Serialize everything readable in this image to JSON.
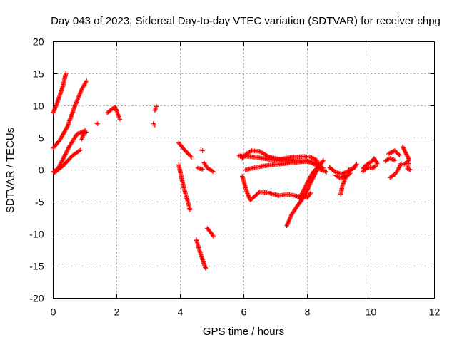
{
  "chart_data": {
    "type": "scatter",
    "title": "Day 043 of 2023, Sidereal Day-to-day VTEC variation (SDTVAR) for receiver chpg",
    "xlabel": "GPS time / hours",
    "ylabel": "SDTVAR / TECUs",
    "xlim": [
      0,
      12
    ],
    "ylim": [
      -20,
      20
    ],
    "x_ticks": [
      "0",
      "2",
      "4",
      "6",
      "8",
      "10",
      "12"
    ],
    "y_ticks": [
      "20",
      "15",
      "10",
      "5",
      "0",
      "-5",
      "-10",
      "-15",
      "-20"
    ],
    "grid": true,
    "marker": "plus",
    "color": "#ff0000",
    "arcs": [
      {
        "points": [
          [
            0.0,
            8.9
          ],
          [
            0.15,
            10.8
          ],
          [
            0.3,
            13.0
          ],
          [
            0.4,
            15.1
          ]
        ]
      },
      {
        "points": [
          [
            0.0,
            3.4
          ],
          [
            0.2,
            4.6
          ],
          [
            0.45,
            6.8
          ],
          [
            0.7,
            10.2
          ],
          [
            0.9,
            12.6
          ],
          [
            1.05,
            13.9
          ]
        ]
      },
      {
        "points": [
          [
            0.0,
            -0.3
          ],
          [
            0.15,
            0.2
          ],
          [
            0.3,
            1.6
          ],
          [
            0.5,
            3.6
          ],
          [
            0.75,
            5.6
          ],
          [
            0.95,
            6.0
          ],
          [
            1.05,
            5.9
          ]
        ]
      },
      {
        "points": [
          [
            0.05,
            -0.4
          ],
          [
            0.3,
            0.6
          ],
          [
            0.6,
            2.2
          ],
          [
            0.85,
            3.1
          ]
        ]
      },
      {
        "points": [
          [
            0.9,
            4.8
          ],
          [
            1.0,
            6.2
          ]
        ]
      },
      {
        "points": [
          [
            1.35,
            7.3
          ],
          [
            1.4,
            7.2
          ]
        ]
      },
      {
        "points": [
          [
            1.7,
            8.9
          ],
          [
            1.85,
            9.5
          ],
          [
            1.95,
            9.8
          ],
          [
            2.05,
            8.5
          ],
          [
            2.1,
            7.9
          ]
        ]
      },
      {
        "points": [
          [
            3.15,
            7.2
          ],
          [
            3.2,
            7.0
          ]
        ]
      },
      {
        "points": [
          [
            3.2,
            9.3
          ],
          [
            3.25,
            9.9
          ]
        ]
      },
      {
        "points": [
          [
            3.95,
            4.2
          ],
          [
            4.1,
            3.3
          ],
          [
            4.25,
            2.5
          ],
          [
            4.35,
            2.0
          ]
        ]
      },
      {
        "points": [
          [
            3.95,
            0.8
          ],
          [
            4.05,
            -1.5
          ],
          [
            4.15,
            -3.5
          ],
          [
            4.25,
            -5.2
          ],
          [
            4.3,
            -6.2
          ]
        ]
      },
      {
        "points": [
          [
            4.55,
            0.3
          ],
          [
            4.7,
            0.1
          ]
        ]
      },
      {
        "points": [
          [
            4.75,
            1.1
          ],
          [
            4.85,
            0.3
          ],
          [
            4.95,
            0.0
          ],
          [
            5.05,
            -0.3
          ]
        ]
      },
      {
        "points": [
          [
            4.65,
            3.1
          ],
          [
            4.7,
            3.0
          ]
        ]
      },
      {
        "points": [
          [
            4.5,
            -10.8
          ],
          [
            4.6,
            -12.5
          ],
          [
            4.7,
            -14.0
          ],
          [
            4.8,
            -15.4
          ]
        ]
      },
      {
        "points": [
          [
            4.85,
            -9.1
          ],
          [
            4.95,
            -9.7
          ],
          [
            5.05,
            -10.4
          ]
        ]
      },
      {
        "points": [
          [
            5.95,
            -1.0
          ],
          [
            6.1,
            -3.5
          ],
          [
            6.2,
            -4.7
          ],
          [
            6.3,
            -4.3
          ],
          [
            6.5,
            -3.4
          ],
          [
            6.8,
            -3.6
          ],
          [
            7.1,
            -4.0
          ],
          [
            7.4,
            -3.8
          ],
          [
            7.7,
            -4.1
          ],
          [
            8.0,
            -4.3
          ],
          [
            8.1,
            -3.6
          ]
        ]
      },
      {
        "points": [
          [
            5.95,
            1.8
          ],
          [
            6.1,
            2.6
          ],
          [
            6.25,
            3.0
          ],
          [
            6.5,
            2.9
          ],
          [
            6.8,
            2.0
          ],
          [
            7.2,
            1.6
          ],
          [
            7.6,
            1.4
          ],
          [
            8.0,
            1.3
          ],
          [
            8.4,
            1.0
          ]
        ]
      },
      {
        "points": [
          [
            6.05,
            0.0
          ],
          [
            6.3,
            0.3
          ],
          [
            6.6,
            0.6
          ],
          [
            6.9,
            0.8
          ],
          [
            7.3,
            1.0
          ],
          [
            7.7,
            1.2
          ],
          [
            8.0,
            1.4
          ],
          [
            8.3,
            0.7
          ],
          [
            8.5,
            0.3
          ]
        ]
      },
      {
        "points": [
          [
            5.85,
            2.2
          ],
          [
            6.2,
            2.1
          ],
          [
            6.6,
            1.8
          ],
          [
            7.0,
            1.5
          ],
          [
            7.5,
            2.0
          ],
          [
            7.9,
            2.1
          ],
          [
            8.1,
            2.0
          ],
          [
            8.3,
            1.5
          ]
        ]
      },
      {
        "points": [
          [
            7.35,
            -8.7
          ],
          [
            7.5,
            -7.0
          ],
          [
            7.7,
            -5.5
          ],
          [
            7.9,
            -4.2
          ],
          [
            8.1,
            -2.0
          ],
          [
            8.25,
            -0.5
          ],
          [
            8.4,
            0.7
          ],
          [
            8.5,
            1.5
          ]
        ]
      },
      {
        "points": [
          [
            7.75,
            -4.5
          ],
          [
            7.9,
            -3.0
          ],
          [
            8.05,
            -1.5
          ],
          [
            8.2,
            -0.2
          ],
          [
            8.3,
            0.3
          ],
          [
            8.45,
            0.0
          ],
          [
            8.6,
            -0.3
          ]
        ]
      },
      {
        "points": [
          [
            8.7,
            0.4
          ],
          [
            8.9,
            -0.4
          ],
          [
            9.1,
            -0.6
          ],
          [
            9.3,
            -0.2
          ],
          [
            9.5,
            0.4
          ]
        ]
      },
      {
        "points": [
          [
            9.05,
            -3.8
          ],
          [
            9.1,
            -2.5
          ],
          [
            9.2,
            -1.2
          ],
          [
            9.35,
            -0.5
          ]
        ]
      },
      {
        "points": [
          [
            8.9,
            -0.9
          ],
          [
            9.05,
            -1.3
          ],
          [
            9.2,
            -0.8
          ]
        ]
      },
      {
        "points": [
          [
            9.3,
            0.0
          ],
          [
            9.45,
            0.3
          ],
          [
            9.55,
            0.9
          ]
        ]
      },
      {
        "points": [
          [
            9.75,
            0.2
          ],
          [
            9.85,
            0.8
          ],
          [
            10.0,
            1.2
          ],
          [
            10.1,
            1.8
          ],
          [
            10.2,
            1.0
          ]
        ]
      },
      {
        "points": [
          [
            9.75,
            -0.2
          ],
          [
            9.9,
            0.4
          ],
          [
            10.05,
            0.3
          ],
          [
            10.15,
            0.6
          ]
        ]
      },
      {
        "points": [
          [
            10.55,
            2.5
          ],
          [
            10.75,
            3.0
          ],
          [
            10.9,
            2.3
          ]
        ]
      },
      {
        "points": [
          [
            10.6,
            -1.2
          ],
          [
            10.75,
            -0.7
          ],
          [
            10.85,
            0.0
          ],
          [
            10.95,
            1.0
          ]
        ]
      },
      {
        "points": [
          [
            10.45,
            1.4
          ],
          [
            10.6,
            1.8
          ],
          [
            10.75,
            1.5
          ]
        ]
      },
      {
        "points": [
          [
            11.0,
            3.6
          ],
          [
            11.1,
            2.6
          ],
          [
            11.2,
            1.6
          ],
          [
            11.15,
            0.2
          ],
          [
            11.25,
            0.0
          ]
        ]
      },
      {
        "points": [
          [
            11.05,
            0.9
          ],
          [
            11.15,
            1.3
          ]
        ]
      }
    ]
  }
}
